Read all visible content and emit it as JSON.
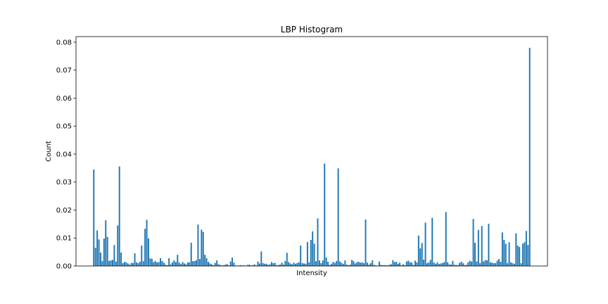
{
  "chart_data": {
    "type": "bar",
    "title": "LBP Histogram",
    "xlabel": "Intensity",
    "ylabel": "Count",
    "xlim": [
      -10.4,
      265.4
    ],
    "ylim": [
      0,
      0.082
    ],
    "y_ticks": [
      "0.00",
      "0.01",
      "0.02",
      "0.03",
      "0.04",
      "0.05",
      "0.06",
      "0.07",
      "0.08"
    ],
    "x_ticks_visible": false,
    "grid": false,
    "bar_color": "#1f77b4",
    "x": [
      0,
      1,
      2,
      3,
      4,
      5,
      6,
      7,
      8,
      9,
      10,
      11,
      12,
      13,
      14,
      15,
      16,
      17,
      18,
      19,
      20,
      21,
      22,
      23,
      24,
      25,
      26,
      27,
      28,
      29,
      30,
      31,
      32,
      33,
      34,
      35,
      36,
      37,
      38,
      39,
      40,
      41,
      42,
      43,
      44,
      45,
      46,
      47,
      48,
      49,
      50,
      51,
      52,
      53,
      54,
      55,
      56,
      57,
      58,
      59,
      60,
      61,
      62,
      63,
      64,
      65,
      66,
      67,
      68,
      69,
      70,
      71,
      72,
      73,
      74,
      75,
      76,
      77,
      78,
      79,
      80,
      81,
      82,
      83,
      84,
      85,
      86,
      87,
      88,
      89,
      90,
      91,
      92,
      93,
      94,
      95,
      96,
      97,
      98,
      99,
      100,
      101,
      102,
      103,
      104,
      105,
      106,
      107,
      108,
      109,
      110,
      111,
      112,
      113,
      114,
      115,
      116,
      117,
      118,
      119,
      120,
      121,
      122,
      123,
      124,
      125,
      126,
      127,
      128,
      129,
      130,
      131,
      132,
      133,
      134,
      135,
      136,
      137,
      138,
      139,
      140,
      141,
      142,
      143,
      144,
      145,
      146,
      147,
      148,
      149,
      150,
      151,
      152,
      153,
      154,
      155,
      156,
      157,
      158,
      159,
      160,
      161,
      162,
      163,
      164,
      165,
      166,
      167,
      168,
      169,
      170,
      171,
      172,
      173,
      174,
      175,
      176,
      177,
      178,
      179,
      180,
      181,
      182,
      183,
      184,
      185,
      186,
      187,
      188,
      189,
      190,
      191,
      192,
      193,
      194,
      195,
      196,
      197,
      198,
      199,
      200,
      201,
      202,
      203,
      204,
      205,
      206,
      207,
      208,
      209,
      210,
      211,
      212,
      213,
      214,
      215,
      216,
      217,
      218,
      219,
      220,
      221,
      222,
      223,
      224,
      225,
      226,
      227,
      228,
      229,
      230,
      231,
      232,
      233,
      234,
      235,
      236,
      237,
      238,
      239,
      240,
      241,
      242,
      243,
      244,
      245,
      246,
      247,
      248,
      249,
      250,
      251,
      252,
      253,
      254,
      255
    ],
    "values": [
      0.0345,
      0.0065,
      0.0127,
      0.0095,
      0.0048,
      0.0018,
      0.0098,
      0.0163,
      0.0104,
      0.0018,
      0.002,
      0.0022,
      0.0075,
      0.0016,
      0.0145,
      0.0356,
      0.0048,
      0.001,
      0.0015,
      0.0013,
      0.0009,
      0.0005,
      0.0011,
      0.0011,
      0.0045,
      0.0013,
      0.001,
      0.0015,
      0.0073,
      0.0017,
      0.0133,
      0.0165,
      0.0099,
      0.0027,
      0.0026,
      0.0014,
      0.0018,
      0.0013,
      0.0014,
      0.0028,
      0.0018,
      0.0012,
      0.0005,
      0.0003,
      0.0028,
      0.0006,
      0.0013,
      0.002,
      0.0014,
      0.004,
      0.0012,
      0.0007,
      0.0014,
      0.0009,
      0.0006,
      0.0013,
      0.0013,
      0.0083,
      0.0017,
      0.0018,
      0.0021,
      0.0148,
      0.0025,
      0.013,
      0.0122,
      0.004,
      0.0028,
      0.0015,
      0.0009,
      0.0006,
      0.0003,
      0.0011,
      0.002,
      0.0006,
      0.0004,
      0.0002,
      0.0003,
      0.0005,
      0.0007,
      0.0002,
      0.0016,
      0.003,
      0.0012,
      0.0002,
      0.0001,
      0.0002,
      0.0003,
      0.0002,
      0.0002,
      0.0001,
      0.0004,
      0.0005,
      0.0002,
      0.0003,
      0.0006,
      0.0002,
      0.0016,
      0.0009,
      0.0052,
      0.001,
      0.0008,
      0.0008,
      0.0004,
      0.0006,
      0.0014,
      0.001,
      0.0011,
      0.0003,
      0.0004,
      0.0005,
      0.0012,
      0.0005,
      0.0018,
      0.0047,
      0.0014,
      0.0009,
      0.0006,
      0.0012,
      0.0008,
      0.0011,
      0.0013,
      0.0073,
      0.001,
      0.0009,
      0.0008,
      0.0086,
      0.0013,
      0.0093,
      0.0124,
      0.008,
      0.0017,
      0.017,
      0.002,
      0.001,
      0.002,
      0.0366,
      0.003,
      0.0015,
      0.0004,
      0.0007,
      0.0015,
      0.0011,
      0.0018,
      0.0349,
      0.0016,
      0.0011,
      0.0007,
      0.002,
      0.0005,
      0.0003,
      0.0005,
      0.0022,
      0.0017,
      0.0009,
      0.0014,
      0.0015,
      0.0012,
      0.0013,
      0.001,
      0.0166,
      0.0012,
      0.0005,
      0.001,
      0.002,
      0.0004,
      0.0002,
      0.0001,
      0.0016,
      0.0004,
      0.0003,
      0.0003,
      0.0003,
      0.0002,
      0.0005,
      0.0006,
      0.0021,
      0.0014,
      0.0015,
      0.0008,
      0.0012,
      0.0003,
      0.0006,
      0.0003,
      0.0016,
      0.0019,
      0.0014,
      0.0012,
      0.0004,
      0.0019,
      0.0013,
      0.0109,
      0.0063,
      0.0082,
      0.0023,
      0.0155,
      0.001,
      0.0013,
      0.0022,
      0.0172,
      0.0012,
      0.0008,
      0.0013,
      0.0007,
      0.0009,
      0.0011,
      0.0014,
      0.0193,
      0.0013,
      0.0006,
      0.0005,
      0.0018,
      0.0004,
      0.0004,
      0.0003,
      0.0011,
      0.0016,
      0.001,
      0.0004,
      0.0004,
      0.0013,
      0.0019,
      0.0016,
      0.0168,
      0.0083,
      0.0016,
      0.0129,
      0.001,
      0.0143,
      0.0016,
      0.0021,
      0.002,
      0.0151,
      0.0013,
      0.0012,
      0.001,
      0.001,
      0.0019,
      0.0025,
      0.0015,
      0.012,
      0.0093,
      0.0079,
      0.001,
      0.0085,
      0.0013,
      0.001,
      0.0008,
      0.0117,
      0.0073,
      0.0068,
      0.001,
      0.008,
      0.0085,
      0.0125,
      0.0075,
      0.078
    ]
  }
}
